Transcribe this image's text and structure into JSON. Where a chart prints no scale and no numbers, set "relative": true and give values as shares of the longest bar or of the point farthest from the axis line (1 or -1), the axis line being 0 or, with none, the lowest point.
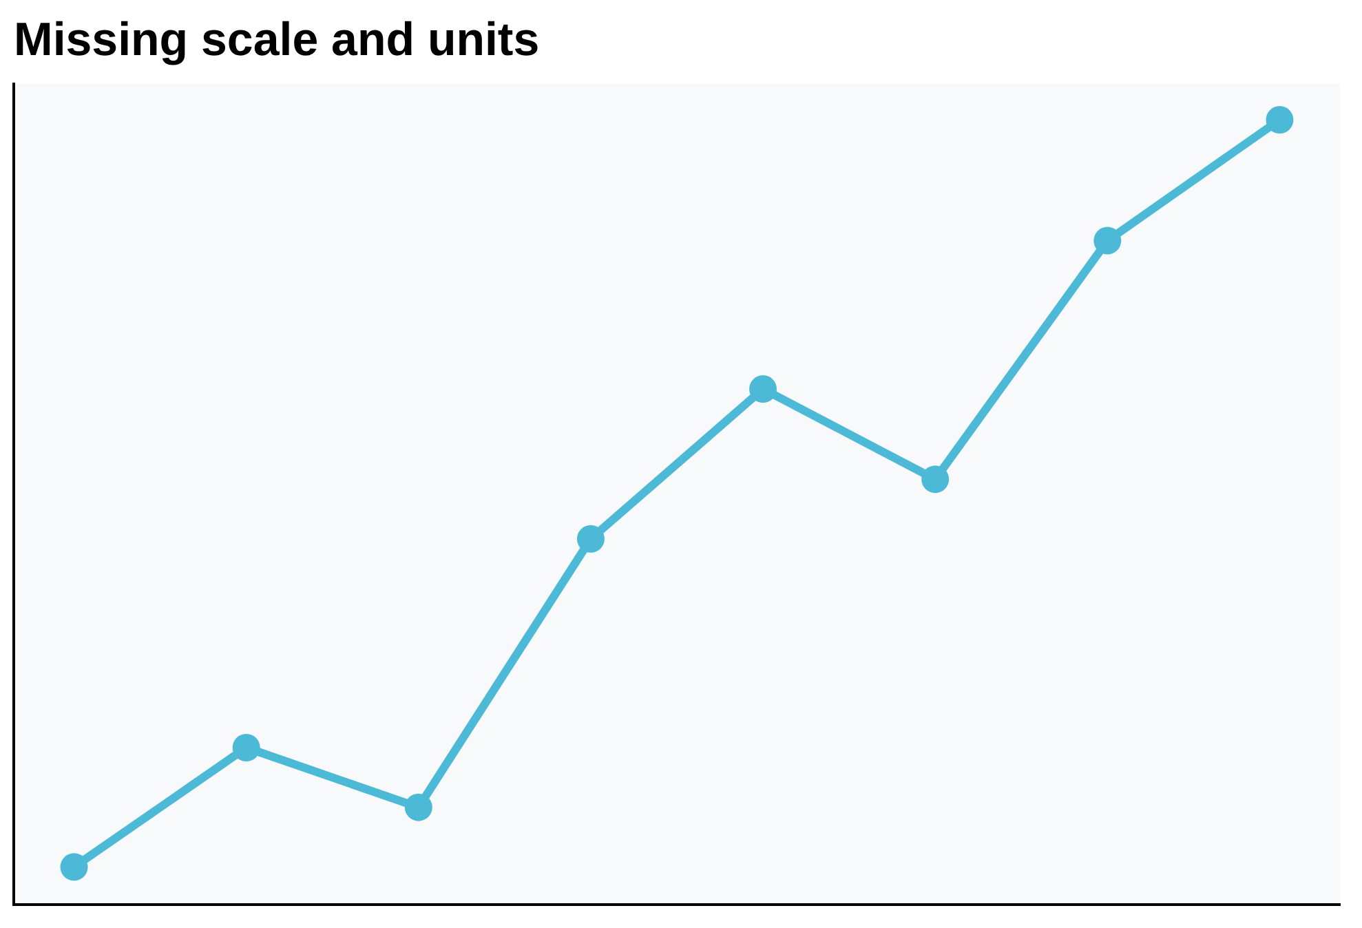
{
  "chart_data": {
    "type": "line",
    "title": "Missing scale and units",
    "relative": true,
    "categories": [
      null,
      null,
      null,
      null,
      null,
      null,
      null,
      null
    ],
    "series": [
      {
        "color": "#4cbad6",
        "values": [
          0.048,
          0.2,
          0.124,
          0.466,
          0.657,
          0.542,
          0.846,
          1
        ]
      }
    ],
    "marker": "circle",
    "line_style": "solid",
    "grid": false,
    "legend": false
  }
}
